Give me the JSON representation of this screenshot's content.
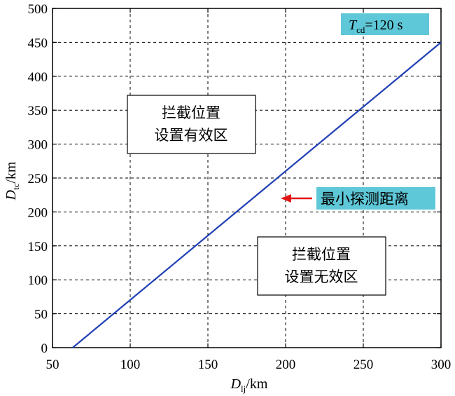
{
  "chart_data": {
    "type": "line",
    "xlabel_main": "D",
    "xlabel_sub": "lj",
    "xlabel_unit": "/km",
    "ylabel_main": "D",
    "ylabel_sub": "tc",
    "ylabel_unit": "/km",
    "xlim": [
      50,
      300
    ],
    "ylim": [
      0,
      500
    ],
    "x_ticks": [
      50,
      100,
      150,
      200,
      250,
      300
    ],
    "y_ticks": [
      0,
      50,
      100,
      150,
      200,
      250,
      300,
      350,
      400,
      450,
      500
    ],
    "grid": true,
    "series": [
      {
        "color": "#1f3fb4",
        "x": [
          63,
          300
        ],
        "y": [
          0,
          450
        ]
      }
    ],
    "annotations": {
      "param_label": {
        "symbol": "T",
        "sub": "cd",
        "value": "=120 s",
        "bg_color": "#5ec8d8"
      },
      "upper_region": {
        "line1": "拦截位置",
        "line2": "设置有效区"
      },
      "lower_region": {
        "line1": "拦截位置",
        "line2": "设置无效区"
      },
      "arrow_label": {
        "text": "最小探测距离",
        "bg_color": "#5ec8d8",
        "arrow_color": "#e31414"
      }
    }
  }
}
